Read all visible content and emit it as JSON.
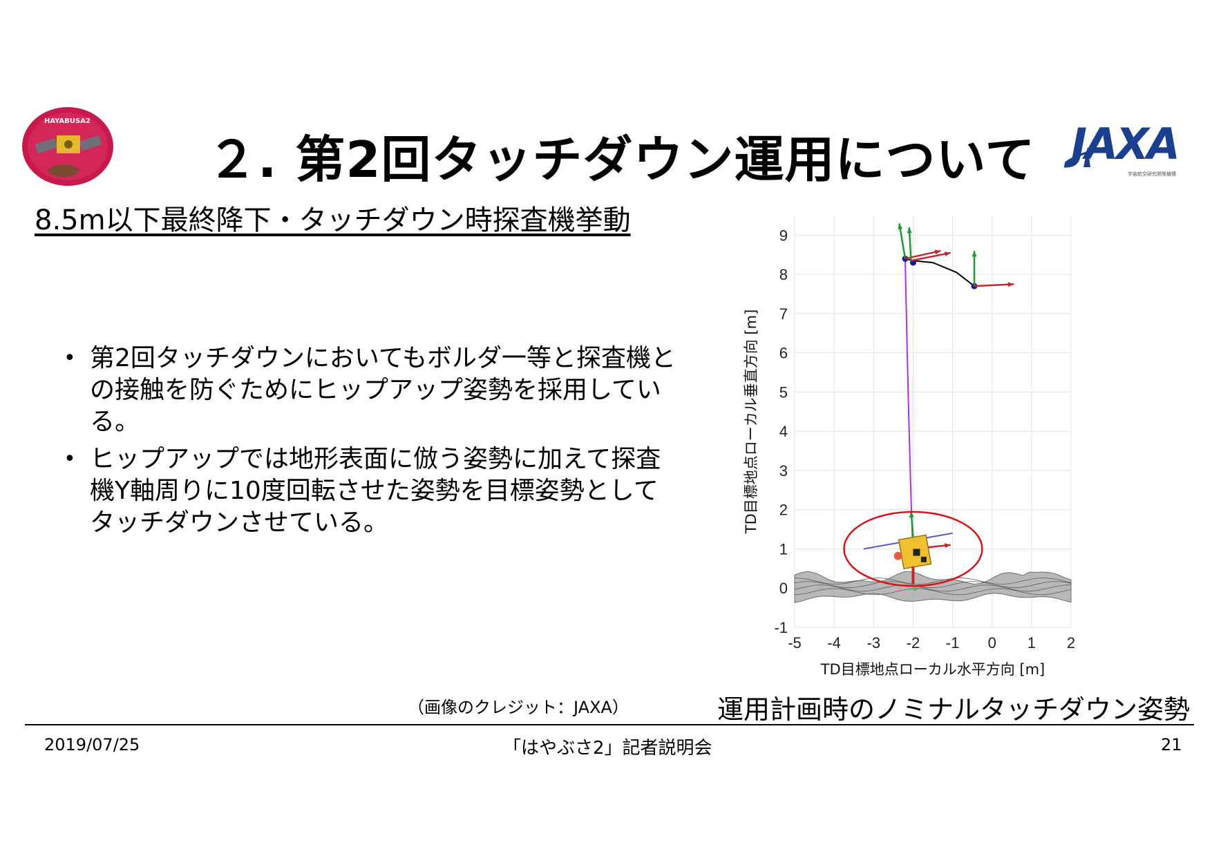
{
  "header": {
    "title": "２. 第2回タッチダウン運用について",
    "mission_logo_text": "HAYABUSA2",
    "agency_logo_text": "JAXA",
    "agency_logo_subtext": "宇宙航空研究開発機構"
  },
  "section": {
    "subtitle": "8.5m以下最終降下・タッチダウン時探査機挙動"
  },
  "bullets": [
    {
      "mark": "•",
      "text": "第2回タッチダウンにおいてもボルダ一等と探査機との接触を防ぐためにヒップアップ姿勢を採用している。"
    },
    {
      "mark": "•",
      "text": "ヒップアップでは地形表面に倣う姿勢に加えて探査機Y軸周りに10度回転させた姿勢を目標姿勢としてタッチダウンさせている。"
    }
  ],
  "figure": {
    "credit": "（画像のクレジット：JAXA）",
    "caption": "運用計画時のノミナルタッチダウン姿勢"
  },
  "chart_data": {
    "type": "line",
    "xlabel": "TD目標地点ローカル水平方向 [m]",
    "ylabel": "TD目標地点ローカル垂直方向 [m]",
    "xlim": [
      -5,
      2
    ],
    "ylim": [
      -1,
      9.5
    ],
    "xticks": [
      "-5",
      "-4",
      "-3",
      "-2",
      "-1",
      "0",
      "1",
      "2"
    ],
    "yticks": [
      "-1",
      "0",
      "1",
      "2",
      "3",
      "4",
      "5",
      "6",
      "7",
      "8",
      "9"
    ],
    "grid": true,
    "colors": {
      "trajectory": "#b030d0",
      "path": "#000000",
      "highlight": "#dd1111",
      "terrain": "#8a8a8a"
    },
    "series": [
      {
        "x": [
          -0.45,
          -0.9,
          -1.5,
          -2.0,
          -2.2
        ],
        "y": [
          7.7,
          8.05,
          8.3,
          8.35,
          8.4
        ]
      },
      {
        "x": [
          -2.2,
          -2.15,
          -2.1,
          -2.05,
          -2.0
        ],
        "y": [
          8.4,
          6.0,
          4.0,
          2.2,
          0.8
        ]
      }
    ],
    "annotations": [
      {
        "shape": "circle",
        "cx": -2.0,
        "cy": 1.0,
        "r": 1.75
      }
    ]
  },
  "footer": {
    "date": "2019/07/25",
    "event": "「はやぶさ2」記者説明会",
    "page": "21"
  }
}
